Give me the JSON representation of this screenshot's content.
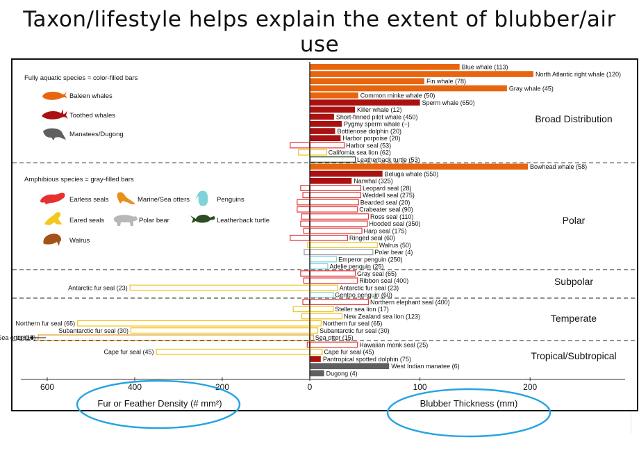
{
  "slide": {
    "title": "Taxon/lifestyle helps explain the extent of blubber/air use"
  },
  "chart_data": {
    "type": "bar",
    "layout": "mirrored horizontal bars",
    "left_axis": {
      "label": "Fur or Feather Density (# mm²)",
      "ticks": [
        600,
        400,
        200,
        0
      ],
      "range": [
        620,
        0
      ]
    },
    "right_axis": {
      "label": "Blubber Thickness (mm)",
      "ticks": [
        0,
        100,
        200
      ],
      "range": [
        0,
        305
      ]
    },
    "legend": {
      "aquatic_header": "Fully aquatic species = color-filled bars",
      "amphibious_header": "Amphibious species = gray-filled bars",
      "items": [
        {
          "label": "Baleen whales",
          "color": "#e8650f",
          "icon": "whale-icon"
        },
        {
          "label": "Toothed whales",
          "color": "#aa1212",
          "icon": "dolphin-icon"
        },
        {
          "label": "Manatees/Dugong",
          "color": "#5f5f5f",
          "icon": "manatee-icon"
        },
        {
          "label": "Earless seals",
          "color": "#e83030",
          "icon": "earless-seal-icon"
        },
        {
          "label": "Marine/Sea otters",
          "color": "#e8901c",
          "icon": "otter-icon"
        },
        {
          "label": "Penguins",
          "color": "#7fd3d8",
          "icon": "penguin-icon"
        },
        {
          "label": "Eared seals",
          "color": "#f2c81a",
          "icon": "eared-seal-icon"
        },
        {
          "label": "Polar bear",
          "color": "#b8b8b8",
          "icon": "polar-bear-icon"
        },
        {
          "label": "Leatherback turtle",
          "color": "#2e4d22",
          "icon": "turtle-icon"
        },
        {
          "label": "Walrus",
          "color": "#a3521a",
          "icon": "walrus-icon"
        }
      ]
    },
    "groups": [
      "Broad Distribution",
      "Polar",
      "Subpolar",
      "Temperate",
      "Tropical/Subtropical"
    ],
    "bars": [
      {
        "label": "Blue whale (113)",
        "group": "Broad Distribution",
        "type": "baleen",
        "blubber": 136,
        "fur": null
      },
      {
        "label": "North Atlantic right whale (120)",
        "group": "Broad Distribution",
        "type": "baleen",
        "blubber": 203,
        "fur": null
      },
      {
        "label": "Fin whale (78)",
        "group": "Broad Distribution",
        "type": "baleen",
        "blubber": 104,
        "fur": null
      },
      {
        "label": "Gray whale (45)",
        "group": "Broad Distribution",
        "type": "baleen",
        "blubber": 179,
        "fur": null
      },
      {
        "label": "Common minke whale (50)",
        "group": "Broad Distribution",
        "type": "baleen",
        "blubber": 44,
        "fur": null
      },
      {
        "label": "Sperm whale (650)",
        "group": "Broad Distribution",
        "type": "toothed",
        "blubber": 100,
        "fur": null
      },
      {
        "label": "Killer whale (12)",
        "group": "Broad Distribution",
        "type": "toothed",
        "blubber": 41,
        "fur": null
      },
      {
        "label": "Short-finned pilot whale (450)",
        "group": "Broad Distribution",
        "type": "toothed",
        "blubber": 22,
        "fur": null
      },
      {
        "label": "Pygmy sperm whale (~)",
        "group": "Broad Distribution",
        "type": "toothed",
        "blubber": 29,
        "fur": null
      },
      {
        "label": "Bottlenose dolphin (20)",
        "group": "Broad Distribution",
        "type": "toothed",
        "blubber": 23,
        "fur": null
      },
      {
        "label": "Harbor porpoise (20)",
        "group": "Broad Distribution",
        "type": "toothed",
        "blubber": 28,
        "fur": null
      },
      {
        "label": "Harbor seal (53)",
        "group": "Broad Distribution",
        "type": "earless",
        "blubber": 31,
        "fur": 44
      },
      {
        "label": "California sea lion (62)",
        "group": "Broad Distribution",
        "type": "eared",
        "blubber": 15,
        "fur": 25
      },
      {
        "label": "Leatherback turtle (53)",
        "group": "Broad Distribution",
        "type": "turtle",
        "blubber": 41,
        "fur": null
      },
      {
        "label": "Bowhead whale (58)",
        "group": "Polar",
        "type": "baleen",
        "blubber": 198,
        "fur": null
      },
      {
        "label": "Beluga whale (550)",
        "group": "Polar",
        "type": "toothed",
        "blubber": 66,
        "fur": null
      },
      {
        "label": "Narwhal (325)",
        "group": "Polar",
        "type": "toothed",
        "blubber": 38,
        "fur": null
      },
      {
        "label": "Leopard seal (28)",
        "group": "Polar",
        "type": "earless",
        "blubber": 46,
        "fur": 20
      },
      {
        "label": "Weddell seal (275)",
        "group": "Polar",
        "type": "earless",
        "blubber": 46,
        "fur": 15
      },
      {
        "label": "Bearded seal (20)",
        "group": "Polar",
        "type": "earless",
        "blubber": 44,
        "fur": 28
      },
      {
        "label": "Crabeater seal (90)",
        "group": "Polar",
        "type": "earless",
        "blubber": 43,
        "fur": 28
      },
      {
        "label": "Ross seal (110)",
        "group": "Polar",
        "type": "earless",
        "blubber": 53,
        "fur": 18
      },
      {
        "label": "Hooded seal (350)",
        "group": "Polar",
        "type": "earless",
        "blubber": 52,
        "fur": 20
      },
      {
        "label": "Harp seal (175)",
        "group": "Polar",
        "type": "earless",
        "blubber": 47,
        "fur": 13
      },
      {
        "label": "Ringed seal (60)",
        "group": "Polar",
        "type": "earless",
        "blubber": 34,
        "fur": 44
      },
      {
        "label": "Walrus (50)",
        "group": "Polar",
        "type": "walrus",
        "blubber": 61,
        "fur": 4
      },
      {
        "label": "Polar bear (4)",
        "group": "Polar",
        "type": "polarbear",
        "blubber": 57,
        "fur": 12
      },
      {
        "label": "Emperor penguin (250)",
        "group": "Polar",
        "type": "penguin",
        "blubber": 24,
        "fur": 0
      },
      {
        "label": "Adelie penguin (25)",
        "group": "Polar",
        "type": "penguin",
        "blubber": 16,
        "fur": 0
      },
      {
        "label": "Gray seal (65)",
        "group": "Subpolar",
        "type": "earless",
        "blubber": 41,
        "fur": 20
      },
      {
        "label": "Ribbon seal (400)",
        "group": "Subpolar",
        "type": "earless",
        "blubber": 43,
        "fur": 13
      },
      {
        "label": "Antarctic fur seal (23)",
        "group": "Subpolar",
        "type": "eared",
        "blubber": 25,
        "fur": 410
      },
      {
        "label": "Gentoo penguin (60)",
        "group": "Subpolar",
        "type": "penguin",
        "blubber": 21,
        "fur": 0
      },
      {
        "label": "Northern elephant seal (400)",
        "group": "Temperate",
        "type": "earless",
        "blubber": 53,
        "fur": 15
      },
      {
        "label": "Steller sea lion (17)",
        "group": "Temperate",
        "type": "eared",
        "blubber": 21,
        "fur": 37
      },
      {
        "label": "New Zealand sea lion (123)",
        "group": "Temperate",
        "type": "eared",
        "blubber": 29,
        "fur": 18
      },
      {
        "label": "Northern fur seal (65)",
        "group": "Temperate",
        "type": "eared",
        "blubber": 10,
        "fur": 530
      },
      {
        "label": "Subantarctic fur seal (30)",
        "group": "Temperate",
        "type": "eared",
        "blubber": 7,
        "fur": 408
      },
      {
        "label": "Sea otter (15)",
        "group": "Temperate",
        "type": "otter",
        "blubber": 3,
        "fur": 620,
        "fur_annotation": "1189"
      },
      {
        "label": "Hawaiian monk seal (25)",
        "group": "Tropical/Subtropical",
        "type": "earless",
        "blubber": 43,
        "fur": 5
      },
      {
        "label": "Cape fur seal (45)",
        "group": "Tropical/Subtropical",
        "type": "eared",
        "blubber": 11,
        "fur": 350
      },
      {
        "label": "Pantropical spotted dolphin (75)",
        "group": "Tropical/Subtropical",
        "type": "toothed",
        "blubber": 10,
        "fur": null
      },
      {
        "label": "West Indian manatee (6)",
        "group": "Tropical/Subtropical",
        "type": "manatee",
        "blubber": 72,
        "fur": null
      },
      {
        "label": "Dugong (4)",
        "group": "Tropical/Subtropical",
        "type": "manatee",
        "blubber": 13,
        "fur": null
      }
    ]
  }
}
